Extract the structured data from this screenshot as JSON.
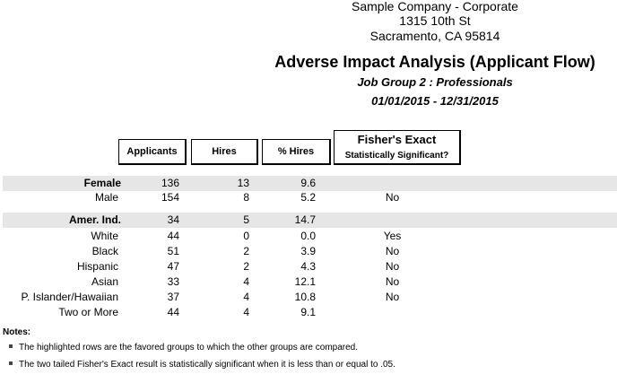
{
  "header": {
    "company": "Sample Company - Corporate",
    "address1": "1315 10th St",
    "address2": "Sacramento, CA 95814",
    "title": "Adverse Impact Analysis (Applicant Flow)",
    "job_group": "Job Group 2 : Professionals",
    "date_range": "01/01/2015 - 12/31/2015"
  },
  "columns": {
    "applicants": "Applicants",
    "hires": "Hires",
    "pct_hires": "% Hires",
    "fisher_title": "Fisher's Exact",
    "fisher_sub": "Statistically Significant?"
  },
  "rows": [
    {
      "group": "Female",
      "applicants": "136",
      "hires": "13",
      "pct": "9.6",
      "fisher": ""
    },
    {
      "group": "Male",
      "applicants": "154",
      "hires": "8",
      "pct": "5.2",
      "fisher": "No"
    },
    {
      "group": "Amer. Ind.",
      "applicants": "34",
      "hires": "5",
      "pct": "14.7",
      "fisher": ""
    },
    {
      "group": "White",
      "applicants": "44",
      "hires": "0",
      "pct": "0.0",
      "fisher": "Yes"
    },
    {
      "group": "Black",
      "applicants": "51",
      "hires": "2",
      "pct": "3.9",
      "fisher": "No"
    },
    {
      "group": "Hispanic",
      "applicants": "47",
      "hires": "2",
      "pct": "4.3",
      "fisher": "No"
    },
    {
      "group": "Asian",
      "applicants": "33",
      "hires": "4",
      "pct": "12.1",
      "fisher": "No"
    },
    {
      "group": "P. Islander/Hawaiian",
      "applicants": "37",
      "hires": "4",
      "pct": "10.8",
      "fisher": "No"
    },
    {
      "group": "Two or More",
      "applicants": "44",
      "hires": "4",
      "pct": "9.1",
      "fisher": ""
    }
  ],
  "notes": {
    "title": "Notes:",
    "items": [
      "The highlighted rows are the favored groups to which the other groups are compared.",
      "The two tailed Fisher's Exact result is statistically significant when it is less than or equal to .05."
    ]
  }
}
